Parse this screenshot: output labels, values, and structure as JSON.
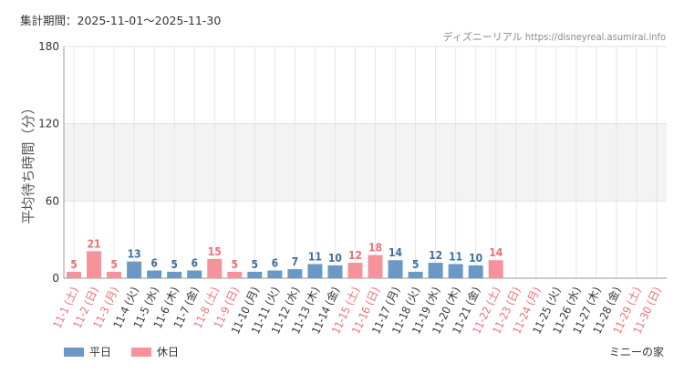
{
  "header": {
    "period_label": "集計期間：2025-11-01～2025-11-30",
    "credit": "ディズニーリアル https://disneyreal.asumirai.info"
  },
  "colors": {
    "weekday": "#6b98c4",
    "holiday": "#f6939a",
    "weekday_label": "#3f6f9f",
    "holiday_label": "#ee6f77",
    "band": "#f3f3f3"
  },
  "legend": {
    "weekday": "平日",
    "holiday": "休日"
  },
  "footer": "ミニーの家",
  "chart_data": {
    "type": "bar",
    "ylabel": "平均待ち時間（分）",
    "ylim": [
      0,
      180
    ],
    "yticks": [
      0,
      60,
      120,
      180
    ],
    "bands": [
      [
        60,
        120
      ]
    ],
    "categories": [
      "11-1 (土)",
      "11-2 (日)",
      "11-3 (月)",
      "11-4 (火)",
      "11-5 (水)",
      "11-6 (木)",
      "11-7 (金)",
      "11-8 (土)",
      "11-9 (日)",
      "11-10 (月)",
      "11-11 (火)",
      "11-12 (水)",
      "11-13 (木)",
      "11-14 (金)",
      "11-15 (土)",
      "11-16 (日)",
      "11-17 (月)",
      "11-18 (火)",
      "11-19 (水)",
      "11-20 (木)",
      "11-21 (金)",
      "11-22 (土)",
      "11-23 (日)",
      "11-24 (月)",
      "11-25 (火)",
      "11-26 (水)",
      "11-27 (木)",
      "11-28 (金)",
      "11-29 (土)",
      "11-30 (日)"
    ],
    "holiday": [
      true,
      true,
      true,
      false,
      false,
      false,
      false,
      true,
      true,
      false,
      false,
      false,
      false,
      false,
      true,
      true,
      false,
      false,
      false,
      false,
      false,
      true,
      true,
      true,
      false,
      false,
      false,
      false,
      true,
      true
    ],
    "series": [
      {
        "name": "平日",
        "values": [
          null,
          null,
          null,
          13,
          6,
          5,
          6,
          null,
          null,
          5,
          6,
          7,
          11,
          10,
          null,
          null,
          14,
          5,
          12,
          11,
          10,
          null,
          null,
          null,
          null,
          null,
          null,
          null,
          null,
          null
        ]
      },
      {
        "name": "休日",
        "values": [
          5,
          21,
          5,
          null,
          null,
          null,
          null,
          15,
          5,
          null,
          null,
          null,
          null,
          null,
          12,
          18,
          null,
          null,
          null,
          null,
          null,
          14,
          null,
          null,
          null,
          null,
          null,
          null,
          null,
          null
        ]
      }
    ]
  }
}
